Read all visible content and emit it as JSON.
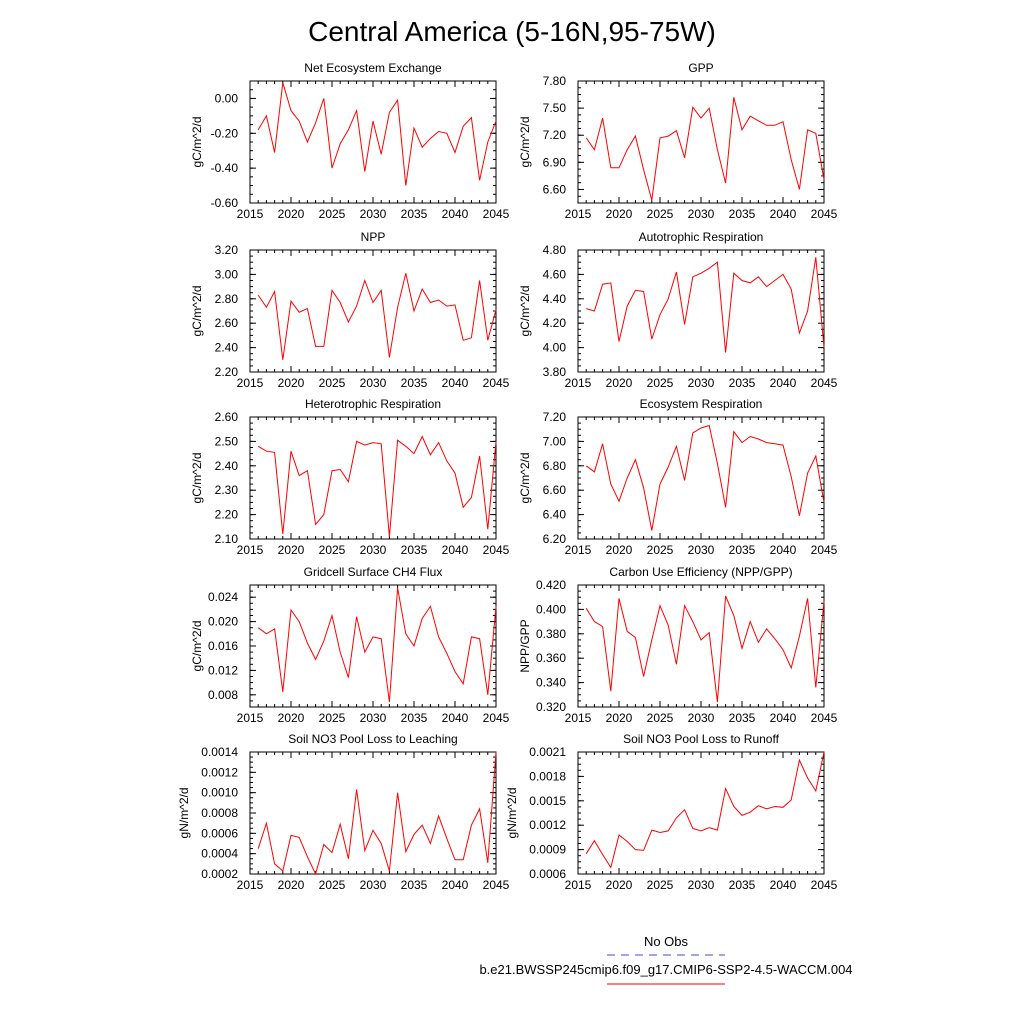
{
  "figure": {
    "title": "Central America (5-16N,95-75W)",
    "legend": {
      "obs_label": "No Obs",
      "obs_color": "#4444cc",
      "model_label": "b.e21.BWSSP245cmip6.f09_g17.CMIP6-SSP2-4.5-WACCM.004",
      "model_color": "#ff0000"
    }
  },
  "chart_data": [
    {
      "type": "line",
      "title": "Net Ecosystem Exchange",
      "ylabel": "gC/m^2/d",
      "xlim": [
        2015,
        2045
      ],
      "ylim": [
        -0.6,
        0.1
      ],
      "xticks": [
        "2015",
        "2020",
        "2025",
        "2030",
        "2035",
        "2040",
        "2045"
      ],
      "yticks": [
        "0.00",
        "-0.20",
        "-0.40",
        "-0.60"
      ],
      "ytick_values": [
        0.0,
        -0.2,
        -0.4,
        -0.6
      ],
      "series": [
        {
          "color": "#ff0000",
          "x": [
            2016,
            2017,
            2018,
            2019,
            2020,
            2021,
            2022,
            2023,
            2024,
            2025,
            2026,
            2027,
            2028,
            2029,
            2030,
            2031,
            2032,
            2033,
            2034,
            2035,
            2036,
            2037,
            2038,
            2039,
            2040,
            2041,
            2042,
            2043,
            2044,
            2045
          ],
          "values": [
            -0.18,
            -0.1,
            -0.31,
            0.09,
            -0.07,
            -0.13,
            -0.25,
            -0.14,
            0.0,
            -0.4,
            -0.26,
            -0.18,
            -0.07,
            -0.42,
            -0.13,
            -0.32,
            -0.08,
            -0.01,
            -0.5,
            -0.17,
            -0.28,
            -0.23,
            -0.19,
            -0.2,
            -0.31,
            -0.16,
            -0.11,
            -0.47,
            -0.25,
            -0.13
          ]
        }
      ]
    },
    {
      "type": "line",
      "title": "GPP",
      "ylabel": "gC/m^2/d",
      "xlim": [
        2015,
        2045
      ],
      "ylim": [
        6.45,
        7.8
      ],
      "xticks": [
        "2015",
        "2020",
        "2025",
        "2030",
        "2035",
        "2040",
        "2045"
      ],
      "yticks": [
        "7.80",
        "7.50",
        "7.20",
        "6.90",
        "6.60"
      ],
      "ytick_values": [
        7.8,
        7.5,
        7.2,
        6.9,
        6.6
      ],
      "series": [
        {
          "color": "#ff0000",
          "x": [
            2016,
            2017,
            2018,
            2019,
            2020,
            2021,
            2022,
            2023,
            2024,
            2025,
            2026,
            2027,
            2028,
            2029,
            2030,
            2031,
            2032,
            2033,
            2034,
            2035,
            2036,
            2037,
            2038,
            2039,
            2040,
            2041,
            2042,
            2043,
            2044,
            2045
          ],
          "values": [
            7.17,
            7.04,
            7.39,
            6.84,
            6.84,
            7.04,
            7.19,
            6.82,
            6.48,
            7.17,
            7.19,
            7.25,
            6.95,
            7.51,
            7.39,
            7.5,
            7.04,
            6.67,
            7.62,
            7.26,
            7.41,
            7.36,
            7.31,
            7.31,
            7.35,
            6.93,
            6.6,
            7.26,
            7.22,
            6.71
          ]
        }
      ]
    },
    {
      "type": "line",
      "title": "NPP",
      "ylabel": "gC/m^2/d",
      "xlim": [
        2015,
        2045
      ],
      "ylim": [
        2.2,
        3.2
      ],
      "xticks": [
        "2015",
        "2020",
        "2025",
        "2030",
        "2035",
        "2040",
        "2045"
      ],
      "yticks": [
        "3.20",
        "3.00",
        "2.80",
        "2.60",
        "2.40",
        "2.20"
      ],
      "ytick_values": [
        3.2,
        3.0,
        2.8,
        2.6,
        2.4,
        2.2
      ],
      "series": [
        {
          "color": "#ff0000",
          "x": [
            2016,
            2017,
            2018,
            2019,
            2020,
            2021,
            2022,
            2023,
            2024,
            2025,
            2026,
            2027,
            2028,
            2029,
            2030,
            2031,
            2032,
            2033,
            2034,
            2035,
            2036,
            2037,
            2038,
            2039,
            2040,
            2041,
            2042,
            2043,
            2044,
            2045
          ],
          "values": [
            2.83,
            2.73,
            2.86,
            2.3,
            2.78,
            2.69,
            2.72,
            2.41,
            2.41,
            2.87,
            2.77,
            2.61,
            2.74,
            2.95,
            2.77,
            2.87,
            2.32,
            2.73,
            3.01,
            2.7,
            2.88,
            2.77,
            2.79,
            2.74,
            2.75,
            2.46,
            2.48,
            2.95,
            2.46,
            2.71
          ]
        }
      ]
    },
    {
      "type": "line",
      "title": "Autotrophic Respiration",
      "ylabel": "gC/m^2/d",
      "xlim": [
        2015,
        2045
      ],
      "ylim": [
        3.8,
        4.8
      ],
      "xticks": [
        "2015",
        "2020",
        "2025",
        "2030",
        "2035",
        "2040",
        "2045"
      ],
      "yticks": [
        "4.80",
        "4.60",
        "4.40",
        "4.20",
        "4.00",
        "3.80"
      ],
      "ytick_values": [
        4.8,
        4.6,
        4.4,
        4.2,
        4.0,
        3.8
      ],
      "series": [
        {
          "color": "#ff0000",
          "x": [
            2016,
            2017,
            2018,
            2019,
            2020,
            2021,
            2022,
            2023,
            2024,
            2025,
            2026,
            2027,
            2028,
            2029,
            2030,
            2031,
            2032,
            2033,
            2034,
            2035,
            2036,
            2037,
            2038,
            2039,
            2040,
            2041,
            2042,
            2043,
            2044,
            2045
          ],
          "values": [
            4.32,
            4.3,
            4.52,
            4.53,
            4.05,
            4.34,
            4.47,
            4.46,
            4.07,
            4.27,
            4.4,
            4.62,
            4.19,
            4.58,
            4.61,
            4.65,
            4.7,
            3.96,
            4.61,
            4.55,
            4.53,
            4.58,
            4.5,
            4.55,
            4.6,
            4.48,
            4.12,
            4.3,
            4.74,
            4.0
          ]
        }
      ]
    },
    {
      "type": "line",
      "title": "Heterotrophic Respiration",
      "ylabel": "gC/m^2/d",
      "xlim": [
        2015,
        2045
      ],
      "ylim": [
        2.1,
        2.6
      ],
      "xticks": [
        "2015",
        "2020",
        "2025",
        "2030",
        "2035",
        "2040",
        "2045"
      ],
      "yticks": [
        "2.60",
        "2.50",
        "2.40",
        "2.30",
        "2.20",
        "2.10"
      ],
      "ytick_values": [
        2.6,
        2.5,
        2.4,
        2.3,
        2.2,
        2.1
      ],
      "series": [
        {
          "color": "#ff0000",
          "x": [
            2016,
            2017,
            2018,
            2019,
            2020,
            2021,
            2022,
            2023,
            2024,
            2025,
            2026,
            2027,
            2028,
            2029,
            2030,
            2031,
            2032,
            2033,
            2034,
            2035,
            2036,
            2037,
            2038,
            2039,
            2040,
            2041,
            2042,
            2043,
            2044,
            2045
          ],
          "values": [
            2.48,
            2.46,
            2.455,
            2.12,
            2.46,
            2.36,
            2.38,
            2.16,
            2.2,
            2.38,
            2.385,
            2.335,
            2.5,
            2.485,
            2.495,
            2.49,
            2.11,
            2.505,
            2.48,
            2.45,
            2.52,
            2.445,
            2.495,
            2.42,
            2.37,
            2.23,
            2.27,
            2.44,
            2.14,
            2.5
          ]
        }
      ]
    },
    {
      "type": "line",
      "title": "Ecosystem Respiration",
      "ylabel": "gC/m^2/d",
      "xlim": [
        2015,
        2045
      ],
      "ylim": [
        6.2,
        7.2
      ],
      "xticks": [
        "2015",
        "2020",
        "2025",
        "2030",
        "2035",
        "2040",
        "2045"
      ],
      "yticks": [
        "7.20",
        "7.00",
        "6.80",
        "6.60",
        "6.40",
        "6.20"
      ],
      "ytick_values": [
        7.2,
        7.0,
        6.8,
        6.6,
        6.4,
        6.2
      ],
      "series": [
        {
          "color": "#ff0000",
          "x": [
            2016,
            2017,
            2018,
            2019,
            2020,
            2021,
            2022,
            2023,
            2024,
            2025,
            2026,
            2027,
            2028,
            2029,
            2030,
            2031,
            2032,
            2033,
            2034,
            2035,
            2036,
            2037,
            2038,
            2039,
            2040,
            2041,
            2042,
            2043,
            2044,
            2045
          ],
          "values": [
            6.8,
            6.75,
            6.98,
            6.65,
            6.51,
            6.7,
            6.85,
            6.62,
            6.27,
            6.65,
            6.79,
            6.96,
            6.68,
            7.07,
            7.11,
            7.13,
            6.82,
            6.46,
            7.08,
            6.99,
            7.04,
            7.02,
            6.99,
            6.98,
            6.97,
            6.71,
            6.39,
            6.74,
            6.88,
            6.5
          ]
        }
      ]
    },
    {
      "type": "line",
      "title": "Gridcell Surface CH4 Flux",
      "ylabel": "gC/m^2/d",
      "xlim": [
        2015,
        2045
      ],
      "ylim": [
        0.006,
        0.026
      ],
      "xticks": [
        "2015",
        "2020",
        "2025",
        "2030",
        "2035",
        "2040",
        "2045"
      ],
      "yticks": [
        "0.024",
        "0.020",
        "0.016",
        "0.012",
        "0.008"
      ],
      "ytick_values": [
        0.024,
        0.02,
        0.016,
        0.012,
        0.008
      ],
      "series": [
        {
          "color": "#ff0000",
          "x": [
            2016,
            2017,
            2018,
            2019,
            2020,
            2021,
            2022,
            2023,
            2024,
            2025,
            2026,
            2027,
            2028,
            2029,
            2030,
            2031,
            2032,
            2033,
            2034,
            2035,
            2036,
            2037,
            2038,
            2039,
            2040,
            2041,
            2042,
            2043,
            2044,
            2045
          ],
          "values": [
            0.019,
            0.018,
            0.0188,
            0.0085,
            0.0219,
            0.02,
            0.0165,
            0.0138,
            0.0168,
            0.021,
            0.015,
            0.0108,
            0.0208,
            0.015,
            0.0175,
            0.0172,
            0.0068,
            0.0255,
            0.018,
            0.016,
            0.0205,
            0.0225,
            0.0175,
            0.0148,
            0.0118,
            0.0098,
            0.0175,
            0.0172,
            0.008,
            0.0225
          ]
        }
      ]
    },
    {
      "type": "line",
      "title": "Carbon Use Efficiency (NPP/GPP)",
      "ylabel": "NPP/GPP",
      "xlim": [
        2015,
        2045
      ],
      "ylim": [
        0.32,
        0.42
      ],
      "xticks": [
        "2015",
        "2020",
        "2025",
        "2030",
        "2035",
        "2040",
        "2045"
      ],
      "yticks": [
        "0.420",
        "0.400",
        "0.380",
        "0.360",
        "0.340",
        "0.320"
      ],
      "ytick_values": [
        0.42,
        0.4,
        0.38,
        0.36,
        0.34,
        0.32
      ],
      "series": [
        {
          "color": "#ff0000",
          "x": [
            2016,
            2017,
            2018,
            2019,
            2020,
            2021,
            2022,
            2023,
            2024,
            2025,
            2026,
            2027,
            2028,
            2029,
            2030,
            2031,
            2032,
            2033,
            2034,
            2035,
            2036,
            2037,
            2038,
            2039,
            2040,
            2041,
            2042,
            2043,
            2044,
            2045
          ],
          "values": [
            0.401,
            0.39,
            0.386,
            0.333,
            0.409,
            0.382,
            0.377,
            0.345,
            0.375,
            0.403,
            0.387,
            0.355,
            0.403,
            0.39,
            0.375,
            0.381,
            0.324,
            0.411,
            0.395,
            0.368,
            0.39,
            0.373,
            0.384,
            0.376,
            0.367,
            0.352,
            0.378,
            0.409,
            0.336,
            0.407
          ]
        }
      ]
    },
    {
      "type": "line",
      "title": "Soil NO3 Pool Loss to Leaching",
      "ylabel": "gN/m^2/d",
      "xlim": [
        2015,
        2045
      ],
      "ylim": [
        0.0002,
        0.0014
      ],
      "xticks": [
        "2015",
        "2020",
        "2025",
        "2030",
        "2035",
        "2040",
        "2045"
      ],
      "yticks": [
        "0.0014",
        "0.0012",
        "0.0010",
        "0.0008",
        "0.0006",
        "0.0004",
        "0.0002"
      ],
      "ytick_values": [
        0.0014,
        0.0012,
        0.001,
        0.0008,
        0.0006,
        0.0004,
        0.0002
      ],
      "series": [
        {
          "color": "#ff0000",
          "x": [
            2016,
            2017,
            2018,
            2019,
            2020,
            2021,
            2022,
            2023,
            2024,
            2025,
            2026,
            2027,
            2028,
            2029,
            2030,
            2031,
            2032,
            2033,
            2034,
            2035,
            2036,
            2037,
            2038,
            2039,
            2040,
            2041,
            2042,
            2043,
            2044,
            2045
          ],
          "values": [
            0.00045,
            0.0007,
            0.0003,
            0.00023,
            0.00058,
            0.00056,
            0.00037,
            0.0002,
            0.00049,
            0.00041,
            0.00069,
            0.00035,
            0.00103,
            0.00043,
            0.00063,
            0.0005,
            0.00023,
            0.001,
            0.00042,
            0.00059,
            0.00068,
            0.0005,
            0.00077,
            0.00055,
            0.00034,
            0.00034,
            0.00068,
            0.00084,
            0.00031,
            0.0014
          ]
        }
      ]
    },
    {
      "type": "line",
      "title": "Soil NO3 Pool Loss to Runoff",
      "ylabel": "gN/m^2/d",
      "xlim": [
        2015,
        2045
      ],
      "ylim": [
        0.0006,
        0.0021
      ],
      "xticks": [
        "2015",
        "2020",
        "2025",
        "2030",
        "2035",
        "2040",
        "2045"
      ],
      "yticks": [
        "0.0021",
        "0.0018",
        "0.0015",
        "0.0012",
        "0.0009",
        "0.0006"
      ],
      "ytick_values": [
        0.0021,
        0.0018,
        0.0015,
        0.0012,
        0.0009,
        0.0006
      ],
      "series": [
        {
          "color": "#ff0000",
          "x": [
            2016,
            2017,
            2018,
            2019,
            2020,
            2021,
            2022,
            2023,
            2024,
            2025,
            2026,
            2027,
            2028,
            2029,
            2030,
            2031,
            2032,
            2033,
            2034,
            2035,
            2036,
            2037,
            2038,
            2039,
            2040,
            2041,
            2042,
            2043,
            2044,
            2045
          ],
          "values": [
            0.00085,
            0.00101,
            0.00084,
            0.00068,
            0.00108,
            0.001,
            0.0009,
            0.00089,
            0.00114,
            0.00111,
            0.00113,
            0.00129,
            0.00139,
            0.00116,
            0.00113,
            0.00117,
            0.00114,
            0.00165,
            0.00143,
            0.00132,
            0.00136,
            0.00144,
            0.0014,
            0.00143,
            0.00142,
            0.00151,
            0.002,
            0.00178,
            0.00162,
            0.0021
          ]
        }
      ]
    }
  ]
}
